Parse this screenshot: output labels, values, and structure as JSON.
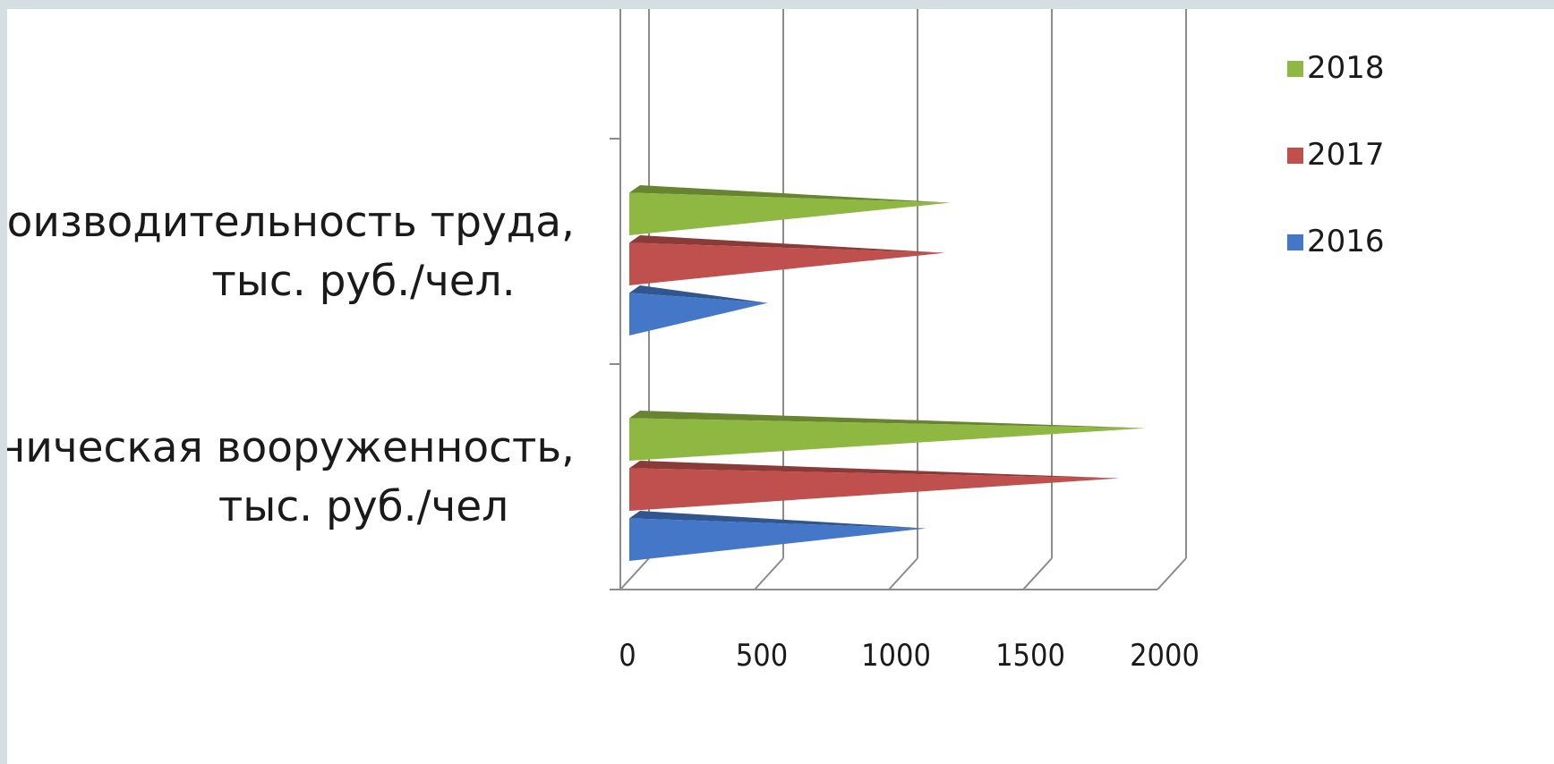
{
  "chart_data": {
    "type": "bar",
    "orientation": "horizontal",
    "style": "3d-cone",
    "categories": [
      [
        "Техническая вооруженность,",
        "тыс. руб./чел"
      ],
      [
        "Производительность труда,",
        "тыс. руб./чел."
      ]
    ],
    "series": [
      {
        "name": "2016",
        "color": "#4477c7",
        "values": [
          1080,
          490
        ]
      },
      {
        "name": "2017",
        "color": "#c0504d",
        "values": [
          1800,
          1150
        ]
      },
      {
        "name": "2018",
        "color": "#8fb842",
        "values": [
          1900,
          1170
        ]
      }
    ],
    "x_ticks": [
      "0",
      "500",
      "1000",
      "1500",
      "2000"
    ],
    "xlim": [
      0,
      2000
    ],
    "grid": true,
    "legend": {
      "position": "right",
      "order": [
        "2018",
        "2017",
        "2016"
      ]
    }
  }
}
